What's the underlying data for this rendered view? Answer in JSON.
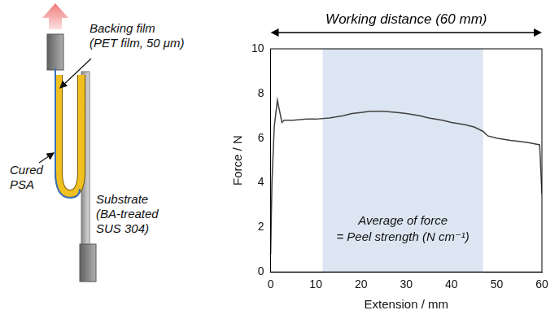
{
  "chart_data": {
    "type": "line",
    "x": [
      0,
      0.3,
      0.8,
      1.5,
      2,
      2.5,
      3,
      5,
      8,
      10,
      13,
      16,
      18,
      20,
      22,
      25,
      28,
      30,
      33,
      35,
      38,
      40,
      43,
      45,
      47,
      48,
      50,
      53,
      55,
      57,
      59.5,
      60
    ],
    "values": [
      0.8,
      4,
      6.5,
      7.7,
      7.2,
      6.7,
      6.8,
      6.8,
      6.85,
      6.85,
      6.9,
      7.0,
      7.1,
      7.15,
      7.2,
      7.2,
      7.15,
      7.1,
      7.0,
      6.9,
      6.8,
      6.7,
      6.6,
      6.5,
      6.3,
      6.1,
      6.0,
      5.9,
      5.85,
      5.8,
      5.7,
      3.5
    ],
    "color": "#404040",
    "xlim": [
      0,
      60
    ],
    "xticks": [
      0,
      10,
      20,
      30,
      40,
      50,
      60
    ],
    "ylim": [
      0,
      10
    ],
    "yticks": [
      0,
      2,
      4,
      6,
      8,
      10
    ],
    "x_label": "Extension / mm",
    "y_label": "Force / N",
    "grid": false,
    "range": [
      0,
      60
    ],
    "range_label": "Working distance (60 mm)",
    "band": [
      11.5,
      47
    ],
    "band_label": [
      "Average of force",
      "= Peel strength (N cm⁻¹)"
    ]
  },
  "diagram": {
    "labels": [
      [
        "Backing film",
        "(PET film, 50 μm)"
      ],
      [
        "Cured",
        "PSA"
      ],
      [
        "Substrate",
        "(BA-treated",
        "SUS 304)"
      ]
    ]
  }
}
